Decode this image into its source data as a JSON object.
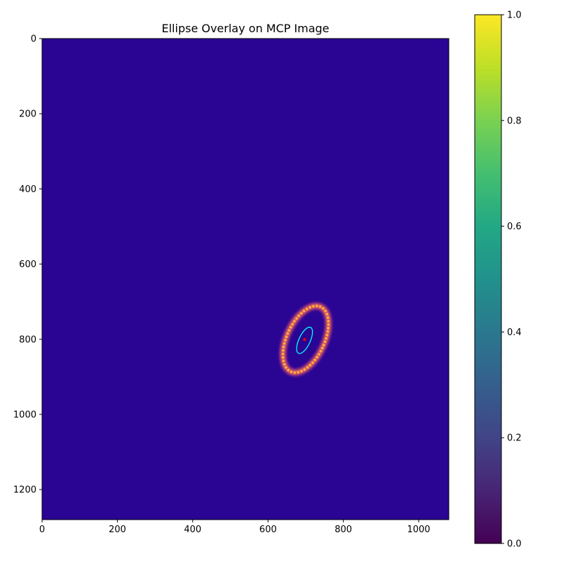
{
  "chart_data": {
    "type": "heatmap",
    "title": "Ellipse Overlay on MCP Image",
    "xlabel": "",
    "ylabel": "",
    "xlim": [
      0,
      1080
    ],
    "ylim": [
      1280,
      0
    ],
    "x_ticks": [
      0,
      200,
      400,
      600,
      800,
      1000
    ],
    "y_ticks": [
      0,
      200,
      400,
      600,
      800,
      1000,
      1200
    ],
    "image_colormap": "plasma",
    "background_color": "#2a0593",
    "ring": {
      "center": [
        700,
        800
      ],
      "semi_axes": [
        50,
        95
      ],
      "angle_deg": 25,
      "color": "#fb9d3a"
    },
    "ellipse_overlay": {
      "center": [
        697,
        803
      ],
      "semi_axes": [
        15,
        38
      ],
      "angle_deg": 25,
      "color": "#00ffff"
    },
    "center_marker": {
      "x": 697,
      "y": 801,
      "color": "#ff0000"
    },
    "colorbar": {
      "colormap": "viridis",
      "range": [
        0,
        1
      ],
      "ticks": [
        0.0,
        0.2,
        0.4,
        0.6,
        0.8,
        1.0
      ],
      "tick_labels": [
        "0.0",
        "0.2",
        "0.4",
        "0.6",
        "0.8",
        "1.0"
      ]
    },
    "grid": false
  }
}
